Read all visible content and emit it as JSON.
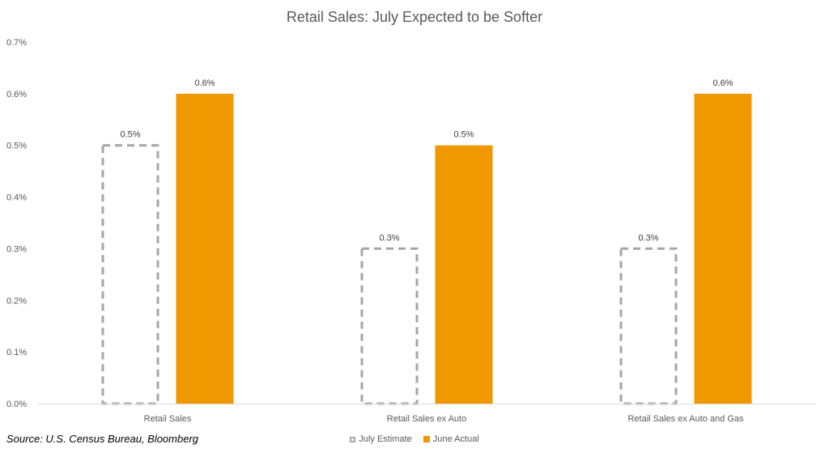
{
  "chart_data": {
    "type": "bar",
    "title": "Retail Sales: July Expected to be Softer",
    "categories": [
      "Retail Sales",
      "Retail Sales ex Auto",
      "Retail Sales ex Auto and Gas"
    ],
    "series": [
      {
        "name": "July Estimate",
        "values": [
          0.5,
          0.3,
          0.3
        ],
        "style": "dashed-outline",
        "color": "#a6a6a6"
      },
      {
        "name": "June Actual",
        "values": [
          0.6,
          0.5,
          0.6
        ],
        "style": "solid",
        "color": "#f09800"
      }
    ],
    "value_labels": [
      [
        "0.5%",
        "0.3%",
        "0.3%"
      ],
      [
        "0.6%",
        "0.5%",
        "0.6%"
      ]
    ],
    "ylim": [
      0,
      0.7
    ],
    "yticks": [
      0,
      0.1,
      0.2,
      0.3,
      0.4,
      0.5,
      0.6,
      0.7
    ],
    "ytick_labels": [
      "0.0%",
      "0.1%",
      "0.2%",
      "0.3%",
      "0.4%",
      "0.5%",
      "0.6%",
      "0.7%"
    ],
    "grid": false,
    "legend_position": "bottom"
  },
  "source_note": "Source: U.S. Census Bureau, Bloomberg"
}
